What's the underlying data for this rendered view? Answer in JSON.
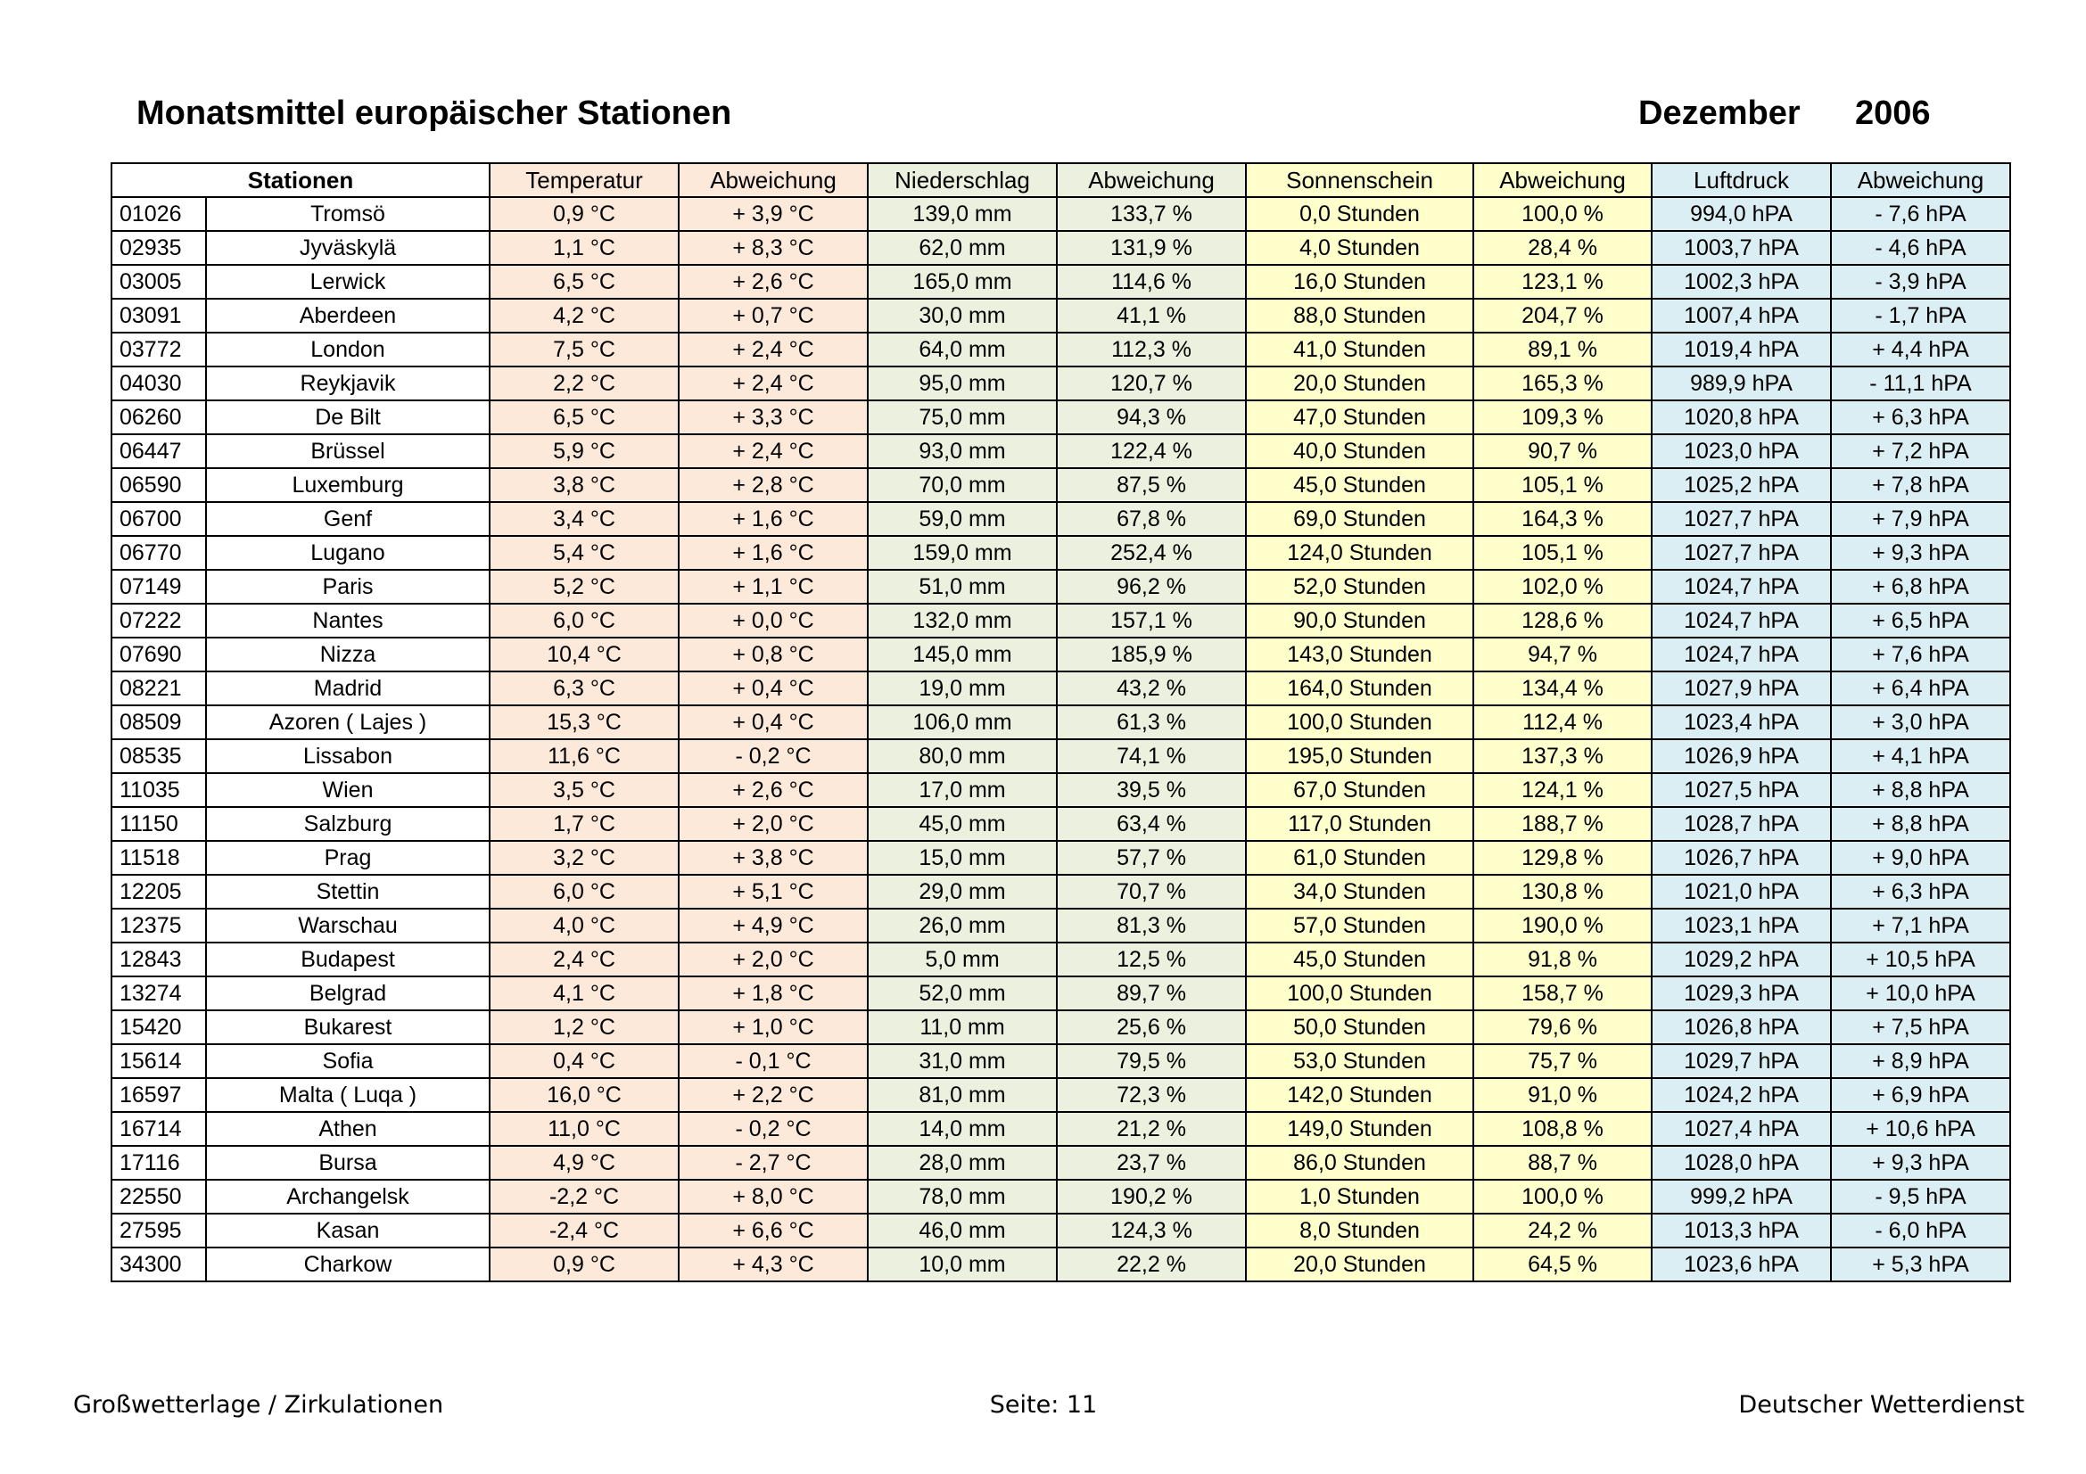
{
  "header": {
    "title": "Monatsmittel europäischer Stationen",
    "month": "Dezember",
    "year": "2006"
  },
  "table": {
    "header": [
      "Stationen",
      "Temperatur",
      "Abweichung",
      "Niederschlag",
      "Abweichung",
      "Sonnenschein",
      "Abweichung",
      "Luftdruck",
      "Abweichung"
    ],
    "rows": [
      [
        "01026",
        "Tromsö",
        "0,9 °C",
        "+ 3,9 °C",
        "139,0 mm",
        "133,7 %",
        "0,0 Stunden",
        "100,0 %",
        "994,0 hPA",
        "- 7,6 hPA"
      ],
      [
        "02935",
        "Jyväskylä",
        "1,1 °C",
        "+ 8,3 °C",
        "62,0 mm",
        "131,9 %",
        "4,0 Stunden",
        "28,4 %",
        "1003,7 hPA",
        "- 4,6 hPA"
      ],
      [
        "03005",
        "Lerwick",
        "6,5 °C",
        "+ 2,6 °C",
        "165,0 mm",
        "114,6 %",
        "16,0 Stunden",
        "123,1 %",
        "1002,3 hPA",
        "- 3,9 hPA"
      ],
      [
        "03091",
        "Aberdeen",
        "4,2 °C",
        "+ 0,7 °C",
        "30,0 mm",
        "41,1 %",
        "88,0 Stunden",
        "204,7 %",
        "1007,4 hPA",
        "- 1,7 hPA"
      ],
      [
        "03772",
        "London",
        "7,5 °C",
        "+ 2,4 °C",
        "64,0 mm",
        "112,3 %",
        "41,0 Stunden",
        "89,1 %",
        "1019,4 hPA",
        "+ 4,4 hPA"
      ],
      [
        "04030",
        "Reykjavik",
        "2,2 °C",
        "+ 2,4 °C",
        "95,0 mm",
        "120,7 %",
        "20,0 Stunden",
        "165,3 %",
        "989,9 hPA",
        "- 11,1 hPA"
      ],
      [
        "06260",
        "De Bilt",
        "6,5 °C",
        "+ 3,3 °C",
        "75,0 mm",
        "94,3 %",
        "47,0 Stunden",
        "109,3 %",
        "1020,8 hPA",
        "+ 6,3 hPA"
      ],
      [
        "06447",
        "Brüssel",
        "5,9 °C",
        "+ 2,4 °C",
        "93,0 mm",
        "122,4 %",
        "40,0 Stunden",
        "90,7 %",
        "1023,0 hPA",
        "+ 7,2 hPA"
      ],
      [
        "06590",
        "Luxemburg",
        "3,8 °C",
        "+ 2,8 °C",
        "70,0 mm",
        "87,5 %",
        "45,0 Stunden",
        "105,1 %",
        "1025,2 hPA",
        "+ 7,8 hPA"
      ],
      [
        "06700",
        "Genf",
        "3,4 °C",
        "+ 1,6 °C",
        "59,0 mm",
        "67,8 %",
        "69,0 Stunden",
        "164,3 %",
        "1027,7 hPA",
        "+ 7,9 hPA"
      ],
      [
        "06770",
        "Lugano",
        "5,4 °C",
        "+ 1,6 °C",
        "159,0 mm",
        "252,4 %",
        "124,0 Stunden",
        "105,1 %",
        "1027,7 hPA",
        "+ 9,3 hPA"
      ],
      [
        "07149",
        "Paris",
        "5,2 °C",
        "+ 1,1 °C",
        "51,0 mm",
        "96,2 %",
        "52,0 Stunden",
        "102,0 %",
        "1024,7 hPA",
        "+ 6,8 hPA"
      ],
      [
        "07222",
        "Nantes",
        "6,0 °C",
        "+ 0,0 °C",
        "132,0 mm",
        "157,1 %",
        "90,0 Stunden",
        "128,6 %",
        "1024,7 hPA",
        "+ 6,5 hPA"
      ],
      [
        "07690",
        "Nizza",
        "10,4 °C",
        "+ 0,8 °C",
        "145,0 mm",
        "185,9 %",
        "143,0 Stunden",
        "94,7 %",
        "1024,7 hPA",
        "+ 7,6 hPA"
      ],
      [
        "08221",
        "Madrid",
        "6,3 °C",
        "+ 0,4 °C",
        "19,0 mm",
        "43,2 %",
        "164,0 Stunden",
        "134,4 %",
        "1027,9 hPA",
        "+ 6,4 hPA"
      ],
      [
        "08509",
        "Azoren ( Lajes )",
        "15,3 °C",
        "+ 0,4 °C",
        "106,0 mm",
        "61,3 %",
        "100,0 Stunden",
        "112,4 %",
        "1023,4 hPA",
        "+ 3,0 hPA"
      ],
      [
        "08535",
        "Lissabon",
        "11,6 °C",
        "- 0,2 °C",
        "80,0 mm",
        "74,1 %",
        "195,0 Stunden",
        "137,3 %",
        "1026,9 hPA",
        "+ 4,1 hPA"
      ],
      [
        "11035",
        "Wien",
        "3,5 °C",
        "+ 2,6 °C",
        "17,0 mm",
        "39,5 %",
        "67,0 Stunden",
        "124,1 %",
        "1027,5 hPA",
        "+ 8,8 hPA"
      ],
      [
        "11150",
        "Salzburg",
        "1,7 °C",
        "+ 2,0 °C",
        "45,0 mm",
        "63,4 %",
        "117,0 Stunden",
        "188,7 %",
        "1028,7 hPA",
        "+ 8,8 hPA"
      ],
      [
        "11518",
        "Prag",
        "3,2 °C",
        "+ 3,8 °C",
        "15,0 mm",
        "57,7 %",
        "61,0 Stunden",
        "129,8 %",
        "1026,7 hPA",
        "+ 9,0 hPA"
      ],
      [
        "12205",
        "Stettin",
        "6,0 °C",
        "+ 5,1 °C",
        "29,0 mm",
        "70,7 %",
        "34,0 Stunden",
        "130,8 %",
        "1021,0 hPA",
        "+ 6,3 hPA"
      ],
      [
        "12375",
        "Warschau",
        "4,0 °C",
        "+ 4,9 °C",
        "26,0 mm",
        "81,3 %",
        "57,0 Stunden",
        "190,0 %",
        "1023,1 hPA",
        "+ 7,1 hPA"
      ],
      [
        "12843",
        "Budapest",
        "2,4 °C",
        "+ 2,0 °C",
        "5,0 mm",
        "12,5 %",
        "45,0 Stunden",
        "91,8 %",
        "1029,2 hPA",
        "+ 10,5 hPA"
      ],
      [
        "13274",
        "Belgrad",
        "4,1 °C",
        "+ 1,8 °C",
        "52,0 mm",
        "89,7 %",
        "100,0 Stunden",
        "158,7 %",
        "1029,3 hPA",
        "+ 10,0 hPA"
      ],
      [
        "15420",
        "Bukarest",
        "1,2 °C",
        "+ 1,0 °C",
        "11,0 mm",
        "25,6 %",
        "50,0 Stunden",
        "79,6 %",
        "1026,8 hPA",
        "+ 7,5 hPA"
      ],
      [
        "15614",
        "Sofia",
        "0,4 °C",
        "- 0,1 °C",
        "31,0 mm",
        "79,5 %",
        "53,0 Stunden",
        "75,7 %",
        "1029,7 hPA",
        "+ 8,9 hPA"
      ],
      [
        "16597",
        "Malta ( Luqa )",
        "16,0 °C",
        "+ 2,2 °C",
        "81,0 mm",
        "72,3 %",
        "142,0 Stunden",
        "91,0 %",
        "1024,2 hPA",
        "+ 6,9 hPA"
      ],
      [
        "16714",
        "Athen",
        "11,0 °C",
        "- 0,2 °C",
        "14,0 mm",
        "21,2 %",
        "149,0 Stunden",
        "108,8 %",
        "1027,4 hPA",
        "+ 10,6 hPA"
      ],
      [
        "17116",
        "Bursa",
        "4,9 °C",
        "- 2,7 °C",
        "28,0 mm",
        "23,7 %",
        "86,0 Stunden",
        "88,7 %",
        "1028,0 hPA",
        "+ 9,3 hPA"
      ],
      [
        "22550",
        "Archangelsk",
        "-2,2 °C",
        "+ 8,0 °C",
        "78,0 mm",
        "190,2 %",
        "1,0 Stunden",
        "100,0 %",
        "999,2 hPA",
        "- 9,5 hPA"
      ],
      [
        "27595",
        "Kasan",
        "-2,4 °C",
        "+ 6,6 °C",
        "46,0 mm",
        "124,3 %",
        "8,0 Stunden",
        "24,2 %",
        "1013,3 hPA",
        "- 6,0 hPA"
      ],
      [
        "34300",
        "Charkow",
        "0,9 °C",
        "+ 4,3 °C",
        "10,0 mm",
        "22,2 %",
        "20,0 Stunden",
        "64,5 %",
        "1023,6 hPA",
        "+ 5,3 hPA"
      ]
    ]
  },
  "footer": {
    "left": "Großwetterlage / Zirkulationen",
    "center": "Seite: 11",
    "right": "Deutscher Wetterdienst"
  }
}
